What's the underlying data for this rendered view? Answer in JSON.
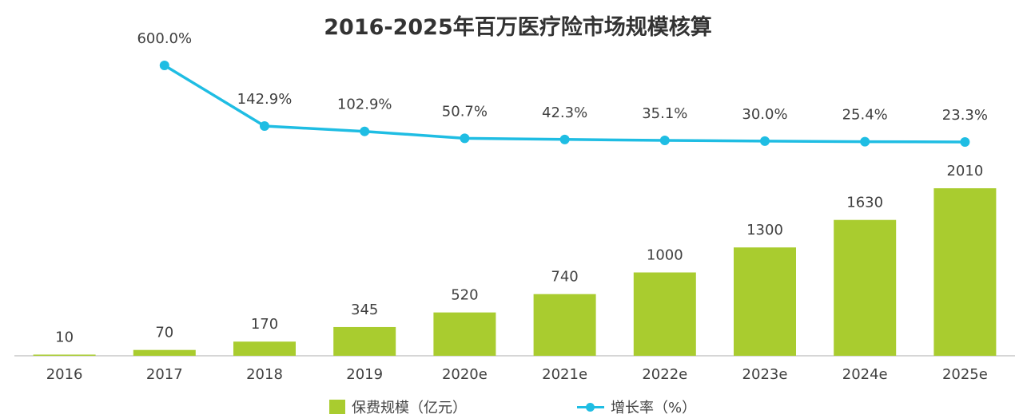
{
  "chart_data": {
    "type": "bar",
    "title": "2016-2025年百万医疗险市场规模核算",
    "categories": [
      "2016",
      "2017",
      "2018",
      "2019",
      "2020e",
      "2021e",
      "2022e",
      "2023e",
      "2024e",
      "2025e"
    ],
    "series": [
      {
        "name": "保费规模（亿元）",
        "type": "bar",
        "values": [
          10,
          70,
          170,
          345,
          520,
          740,
          1000,
          1300,
          1630,
          2010
        ],
        "labels": [
          "10",
          "70",
          "170",
          "345",
          "520",
          "740",
          "1000",
          "1300",
          "1630",
          "2010"
        ]
      },
      {
        "name": "增长率（%）",
        "type": "line",
        "values": [
          null,
          600.0,
          142.9,
          102.9,
          50.7,
          42.3,
          35.1,
          30.0,
          25.4,
          23.3
        ],
        "labels": [
          "",
          "600.0%",
          "142.9%",
          "102.9%",
          "50.7%",
          "42.3%",
          "35.1%",
          "30.0%",
          "25.4%",
          "23.3%"
        ]
      }
    ],
    "legend_position": "bottom",
    "grid": false,
    "colors": {
      "bar": "#a9cc2f",
      "line": "#1fbde3",
      "axis": "#c8c8c8",
      "text": "#404040"
    }
  }
}
